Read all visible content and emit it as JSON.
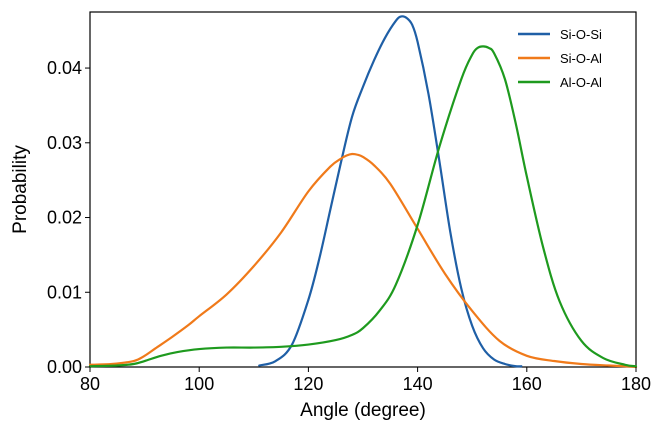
{
  "chart_data": {
    "type": "line",
    "title": "",
    "xlabel": "Angle (degree)",
    "ylabel": "Probability",
    "xlim": [
      80,
      180
    ],
    "ylim": [
      0,
      0.0475
    ],
    "xticks": [
      80,
      100,
      120,
      140,
      160,
      180
    ],
    "xtick_labels": [
      "80",
      "100",
      "120",
      "140",
      "160",
      "180"
    ],
    "yticks": [
      0,
      0.01,
      0.02,
      0.03,
      0.04
    ],
    "ytick_labels": [
      "0.00",
      "0.01",
      "0.02",
      "0.03",
      "0.04"
    ],
    "grid": false,
    "legend_position": "top-right",
    "series": [
      {
        "name": "Si-O-Si",
        "color": "#1f5fa6",
        "x": [
          111,
          114,
          117,
          120,
          122,
          124,
          126,
          128,
          130,
          132,
          134,
          136,
          137,
          138,
          139,
          140,
          142,
          144,
          146,
          148,
          150,
          152,
          154,
          156,
          158,
          159
        ],
        "y": [
          0.0002,
          0.0008,
          0.003,
          0.009,
          0.0145,
          0.021,
          0.0275,
          0.0335,
          0.0375,
          0.041,
          0.044,
          0.0463,
          0.0469,
          0.0467,
          0.0458,
          0.0435,
          0.0365,
          0.0275,
          0.018,
          0.0105,
          0.0055,
          0.0025,
          0.001,
          0.0004,
          0.0001,
          0.0001
        ]
      },
      {
        "name": "Si-O-Al",
        "color": "#f07a1a",
        "x": [
          80,
          84,
          88,
          90,
          92,
          95,
          98,
          100,
          105,
          110,
          115,
          120,
          124,
          126,
          127,
          128,
          129,
          130,
          132,
          135,
          140,
          145,
          150,
          155,
          160,
          165,
          170,
          175,
          178,
          180
        ],
        "y": [
          0.0003,
          0.0004,
          0.0008,
          0.0015,
          0.0025,
          0.004,
          0.0056,
          0.0068,
          0.0097,
          0.0135,
          0.018,
          0.0235,
          0.0268,
          0.0279,
          0.0283,
          0.0285,
          0.0284,
          0.0281,
          0.027,
          0.0245,
          0.0185,
          0.0125,
          0.0075,
          0.0035,
          0.0015,
          0.0008,
          0.0004,
          0.0002,
          0.0001,
          0.0
        ]
      },
      {
        "name": "Al-O-Al",
        "color": "#1e9a1e",
        "x": [
          80,
          85,
          88,
          90,
          93,
          96,
          100,
          105,
          110,
          115,
          120,
          125,
          128,
          130,
          133,
          136,
          140,
          144,
          148,
          150,
          151,
          152,
          153,
          154,
          156,
          158,
          160,
          163,
          166,
          170,
          174,
          178,
          180
        ],
        "y": [
          0.0001,
          0.0002,
          0.0004,
          0.0008,
          0.0015,
          0.002,
          0.0024,
          0.0026,
          0.0026,
          0.0027,
          0.003,
          0.0036,
          0.0043,
          0.0052,
          0.0075,
          0.011,
          0.019,
          0.0295,
          0.0385,
          0.0418,
          0.0427,
          0.0429,
          0.0427,
          0.042,
          0.0385,
          0.0325,
          0.0255,
          0.016,
          0.0088,
          0.0035,
          0.0012,
          0.0003,
          0.0001
        ]
      }
    ]
  }
}
